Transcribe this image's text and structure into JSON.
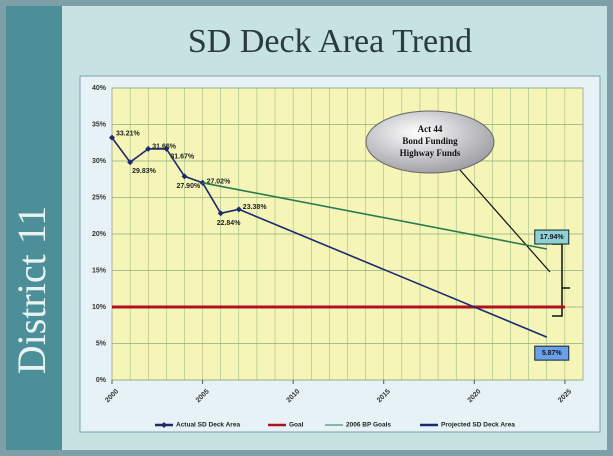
{
  "sidebar": "District 11",
  "chart_data": {
    "type": "line",
    "title": "SD Deck Area Trend",
    "xlim": [
      2000,
      2026
    ],
    "xticks": [
      2000,
      2005,
      2010,
      2015,
      2020,
      2025
    ],
    "ylim": [
      0,
      40
    ],
    "yticks": [
      {
        "value": 0,
        "label": "0%"
      },
      {
        "value": 5,
        "label": "5%"
      },
      {
        "value": 10,
        "label": "10%"
      },
      {
        "value": 15,
        "label": "15%"
      },
      {
        "value": 20,
        "label": "20%"
      },
      {
        "value": 25,
        "label": "25%"
      },
      {
        "value": 30,
        "label": "30%"
      },
      {
        "value": 35,
        "label": "35%"
      },
      {
        "value": 40,
        "label": "40%"
      }
    ],
    "grid": true,
    "legend": "bottom",
    "callout": [
      "Act 44",
      "Bond Funding",
      "Highway Funds"
    ],
    "series": [
      {
        "name": "Actual SD Deck Area",
        "color": "#1f2a6b",
        "markers": true,
        "x": [
          2000,
          2001,
          2002,
          2003,
          2004,
          2005,
          2006,
          2007
        ],
        "values": [
          33.21,
          29.83,
          31.66,
          31.67,
          27.9,
          27.02,
          22.84,
          23.38
        ],
        "value_labels": [
          "33.21%",
          "29.83%",
          "31.66%",
          "31.67%",
          "27.90%",
          "27.02%",
          "22.84%",
          "23.38%"
        ]
      },
      {
        "name": "Goal",
        "color": "#b01020",
        "x": [
          2000,
          2025
        ],
        "values": [
          10,
          10
        ]
      },
      {
        "name": "2006 BP Goals",
        "color": "#2a7a50",
        "x": [
          2005,
          2024
        ],
        "values": [
          27.02,
          17.94
        ],
        "value_labels": [
          null,
          "17.94%"
        ]
      },
      {
        "name": "Projected SD Deck Area",
        "color": "#1c2a70",
        "x": [
          2007,
          2024
        ],
        "values": [
          23.38,
          5.87
        ],
        "value_labels": [
          null,
          "5.87%"
        ]
      }
    ]
  }
}
